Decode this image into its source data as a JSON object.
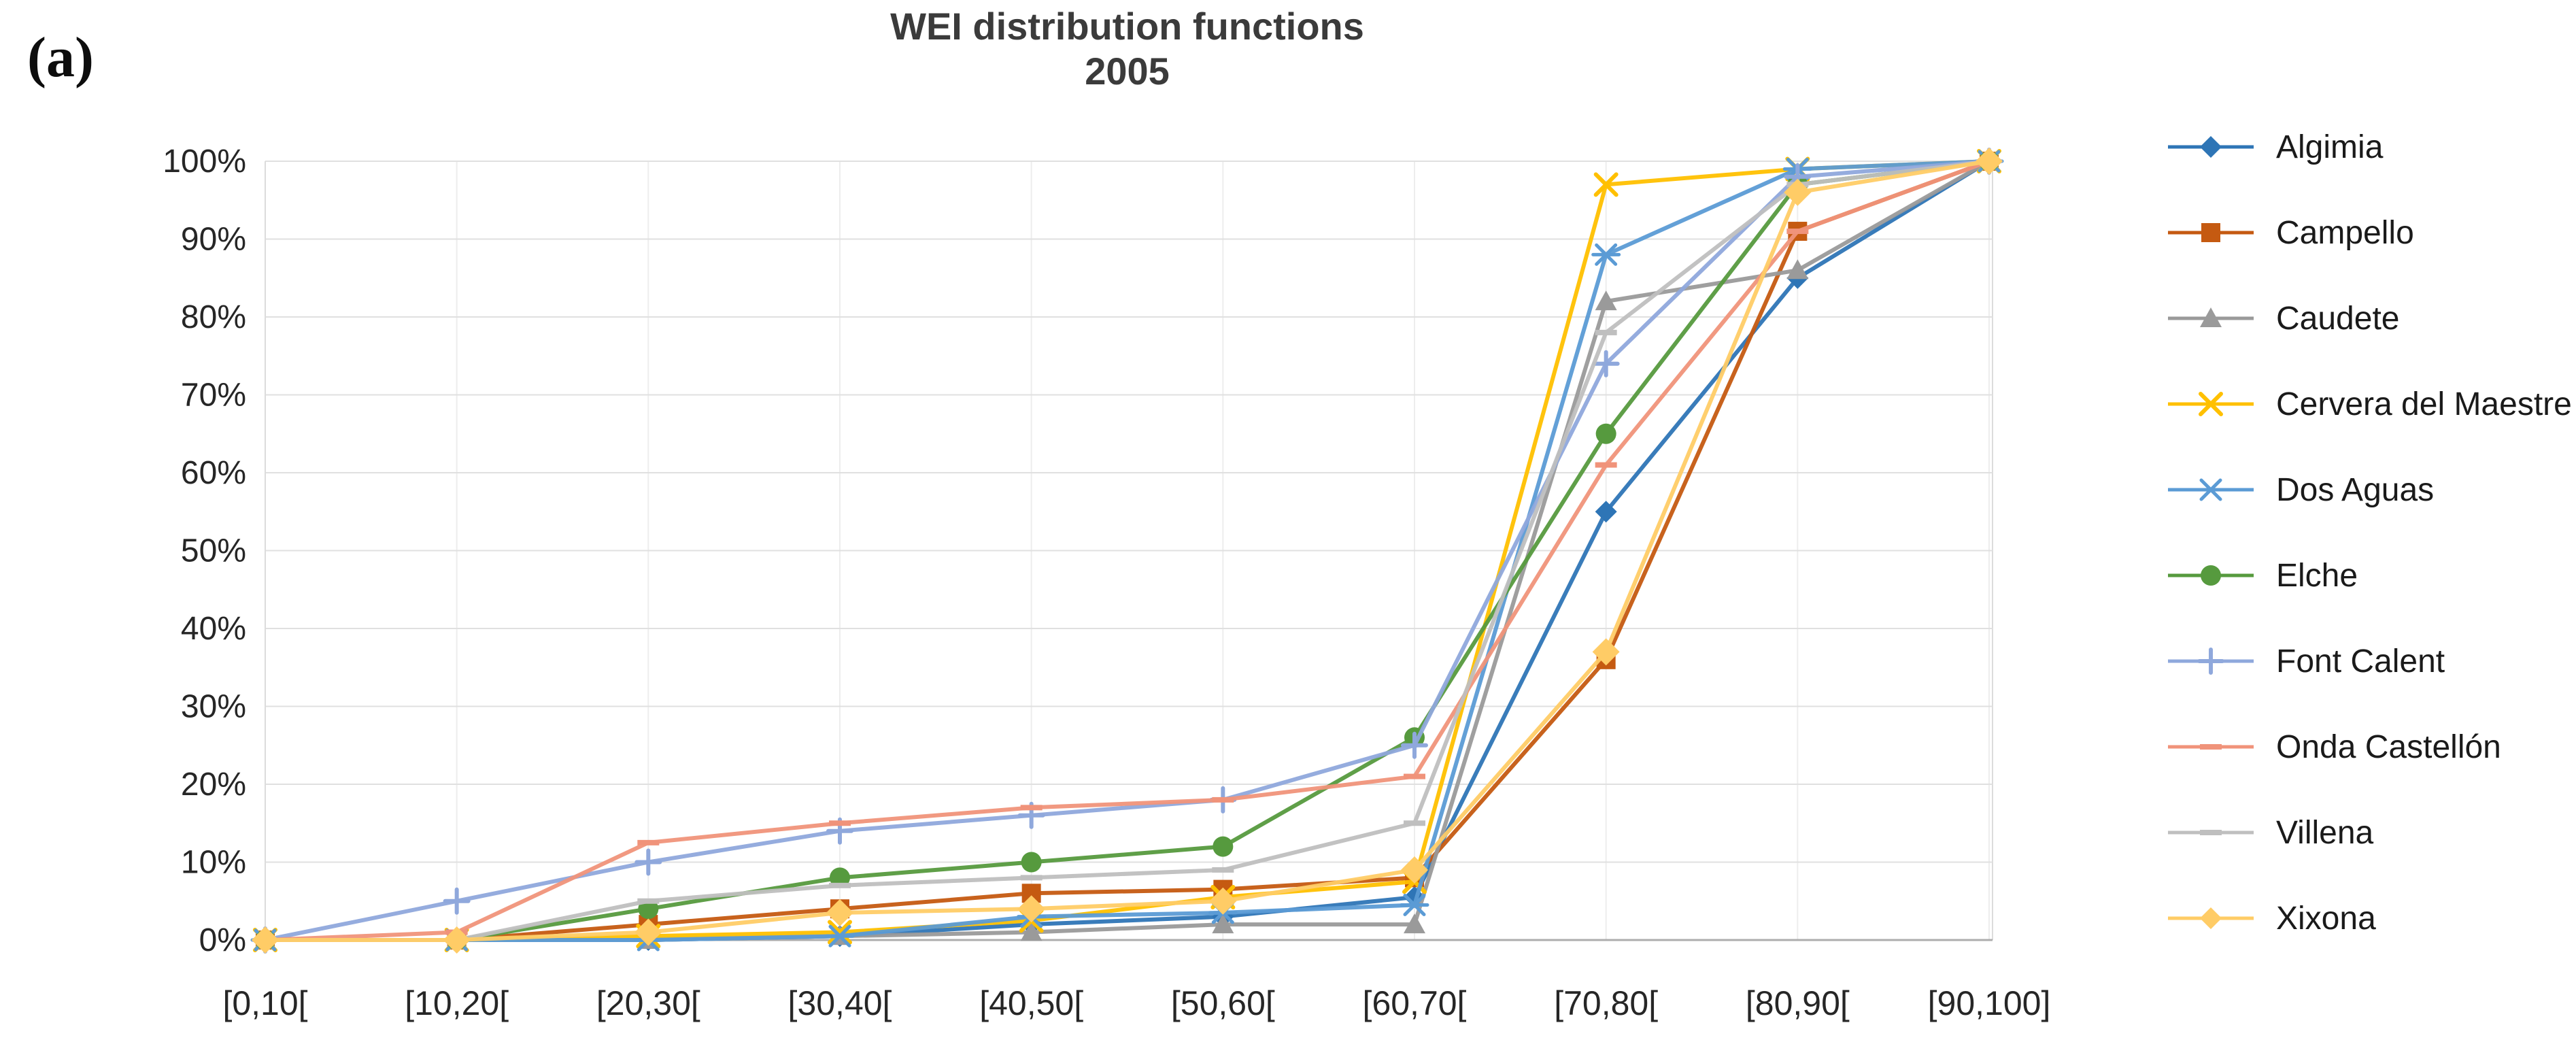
{
  "figure_label": "(a)",
  "chart": {
    "title_line1": "WEI distribution functions",
    "title_line2": "2005"
  },
  "chart_data": {
    "type": "line",
    "title": "WEI distribution functions 2005",
    "xlabel": "",
    "ylabel": "",
    "categories": [
      "[0,10[",
      "[10,20[",
      "[20,30[",
      "[30,40[",
      "[40,50[",
      "[50,60[",
      "[60,70[",
      "[70,80[",
      "[80,90[",
      "[90,100]"
    ],
    "y_axis": {
      "tick_labels": [
        "0%",
        "10%",
        "20%",
        "30%",
        "40%",
        "50%",
        "60%",
        "70%",
        "80%",
        "90%",
        "100%"
      ],
      "min": 0,
      "max": 100,
      "grid": true
    },
    "legend_position": "right",
    "series": [
      {
        "name": "Algimia",
        "color": "#2E75B6",
        "marker": "diamond",
        "values": [
          0,
          0,
          0,
          0.5,
          2,
          3,
          5.5,
          55,
          85,
          100
        ]
      },
      {
        "name": "Campello",
        "color": "#C55A11",
        "marker": "square",
        "values": [
          0,
          0,
          2,
          4,
          6,
          6.5,
          8,
          36,
          91,
          100
        ]
      },
      {
        "name": "Caudete",
        "color": "#9A9A9A",
        "marker": "triangle",
        "values": [
          0,
          0,
          0,
          0.5,
          1,
          2,
          2,
          82,
          86,
          100
        ]
      },
      {
        "name": "Cervera del Maestre",
        "color": "#FFC000",
        "marker": "x",
        "values": [
          0,
          0,
          0.5,
          1,
          2.5,
          5.5,
          7.5,
          97,
          99,
          100
        ]
      },
      {
        "name": "Dos Aguas",
        "color": "#5B9BD5",
        "marker": "asterisk",
        "values": [
          0,
          0,
          0,
          0.5,
          3,
          3.5,
          4.5,
          88,
          99,
          100
        ]
      },
      {
        "name": "Elche",
        "color": "#569A3E",
        "marker": "circle",
        "values": [
          0,
          0,
          4,
          8,
          10,
          12,
          26,
          65,
          97,
          100
        ]
      },
      {
        "name": "Font Calent",
        "color": "#8FA8DC",
        "marker": "plus",
        "values": [
          0,
          5,
          10,
          14,
          16,
          18,
          25,
          74,
          98,
          100
        ]
      },
      {
        "name": "Onda Castellón",
        "color": "#F0937A",
        "marker": "dash",
        "values": [
          0,
          1,
          12.5,
          15,
          17,
          18,
          21,
          61,
          91,
          100
        ]
      },
      {
        "name": "Villena",
        "color": "#BFBFBF",
        "marker": "dash",
        "values": [
          0,
          0,
          5,
          7,
          8,
          9,
          15,
          78,
          97,
          100
        ]
      },
      {
        "name": "Xixona",
        "color": "#FFCC66",
        "marker": "diamond",
        "values": [
          0,
          0,
          1,
          3.5,
          4,
          5,
          9,
          37,
          96,
          100
        ]
      }
    ]
  },
  "colors": {
    "grid_horizontal": "#E0E0E0",
    "grid_vertical": "#EDEDED",
    "axis_line": "#ADADAD",
    "plot_border": "#DCDCDC",
    "title_text": "#3B3B3B"
  }
}
